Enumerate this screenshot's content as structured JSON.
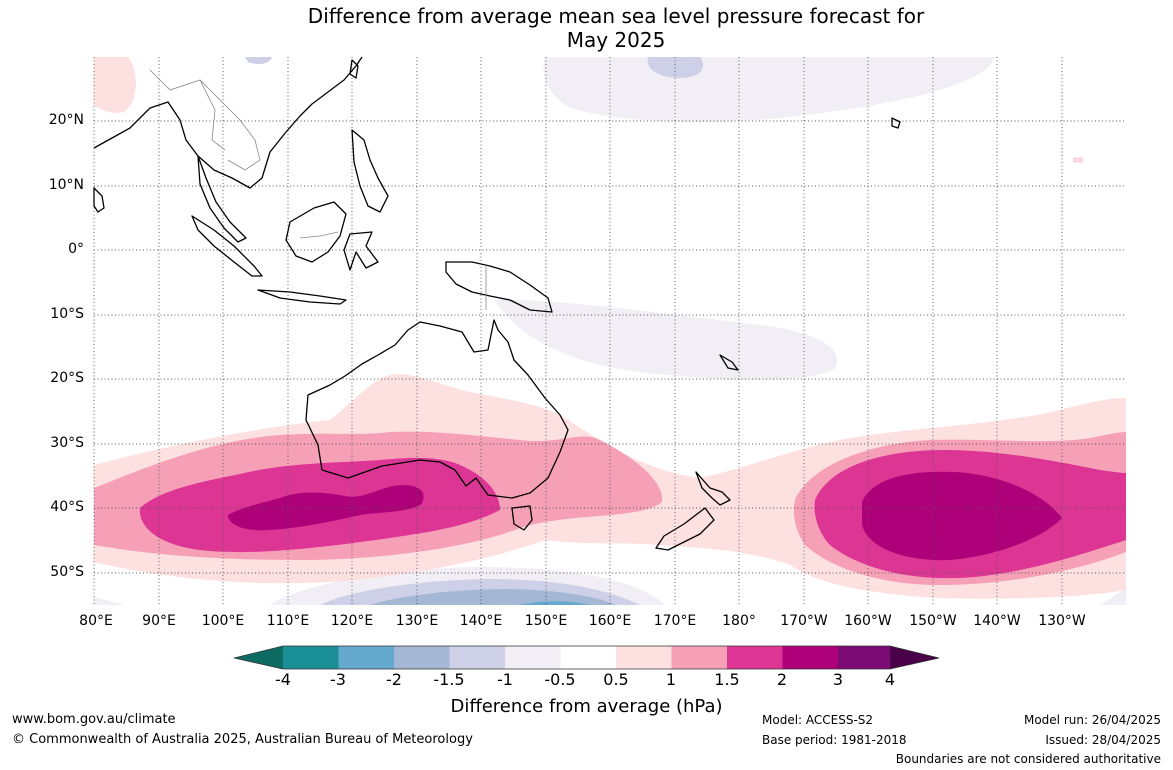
{
  "title": {
    "line1": "Difference from average mean sea level pressure forecast for",
    "line2": "May 2025"
  },
  "map": {
    "lat_labels": [
      "20°N",
      "10°N",
      "0°",
      "10°S",
      "20°S",
      "30°S",
      "40°S",
      "50°S"
    ],
    "lon_labels": [
      "80°E",
      "90°E",
      "100°E",
      "110°E",
      "120°E",
      "130°E",
      "140°E",
      "150°E",
      "160°E",
      "170°E",
      "180°",
      "170°W",
      "160°W",
      "150°W",
      "140°W",
      "130°W"
    ],
    "region": "Australia and Pacific Ocean"
  },
  "colorbar": {
    "ticks": [
      "-4",
      "-3",
      "-2",
      "-1.5",
      "-1",
      "-0.5",
      "0.5",
      "1",
      "1.5",
      "2",
      "3",
      "4"
    ],
    "colors": [
      "#0d6b63",
      "#1a9096",
      "#66a9cf",
      "#a4b8d6",
      "#cdd0e6",
      "#f2eef5",
      "#ffffff",
      "#fde0e0",
      "#f6a0b8",
      "#dc3594",
      "#ae0179",
      "#7b0a75",
      "#4a0048"
    ],
    "label": "Difference from average (hPa)"
  },
  "footer": {
    "website": "www.bom.gov.au/climate",
    "copyright": "© Commonwealth of Australia 2025, Australian Bureau of Meteorology",
    "model": "Model: ACCESS-S2",
    "base_period": "Base period: 1981-2018",
    "model_run": "Model run: 26/04/2025",
    "issued": "Issued: 28/04/2025",
    "disclaimer": "Boundaries are not considered authoritative"
  }
}
